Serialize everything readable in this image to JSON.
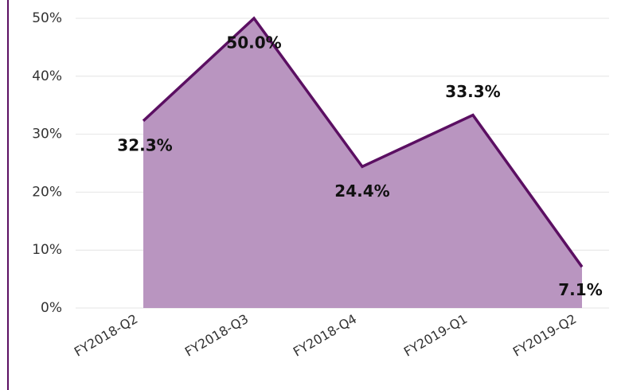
{
  "chart_data": {
    "type": "area",
    "categories": [
      "FY2018-Q2",
      "FY2018-Q3",
      "FY2018-Q4",
      "FY2019-Q1",
      "FY2019-Q2"
    ],
    "values": [
      32.3,
      50.0,
      24.4,
      33.3,
      7.1
    ],
    "value_labels": [
      "32.3%",
      "50.0%",
      "24.4%",
      "33.3%",
      "7.1%"
    ],
    "color": "#5b0f62",
    "fill": "#b995c0",
    "ylim": [
      0,
      50
    ],
    "yticks": [
      {
        "value": 0,
        "label": "0%"
      },
      {
        "value": 10,
        "label": "10%"
      },
      {
        "value": 20,
        "label": "20%"
      },
      {
        "value": 30,
        "label": "30%"
      },
      {
        "value": 40,
        "label": "40%"
      },
      {
        "value": 50,
        "label": "50%"
      }
    ],
    "grid": true
  }
}
